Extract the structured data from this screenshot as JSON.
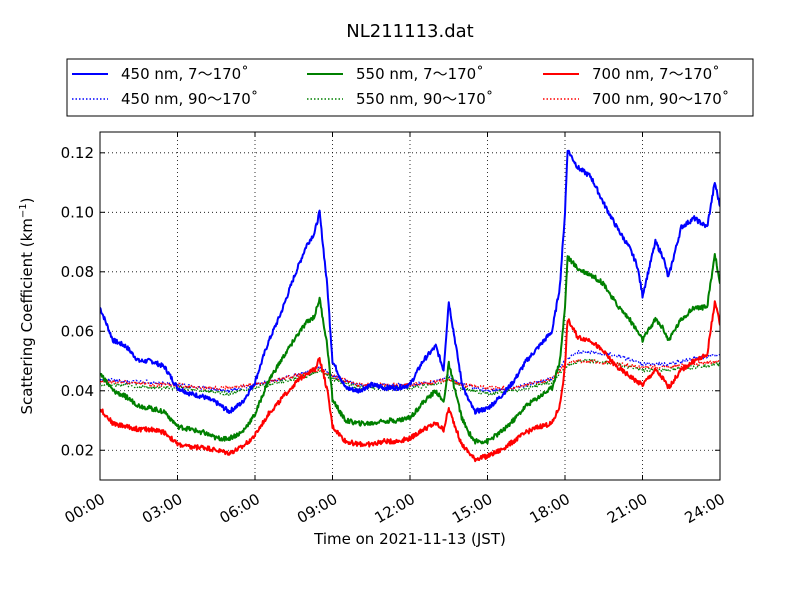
{
  "chart_data": {
    "type": "line",
    "title": "NL211113.dat",
    "xlabel": "Time on 2021-11-13 (JST)",
    "ylabel": "Scattering Coefficient (km",
    "ylabel_sup": "−1",
    "ylabel_tail": ")",
    "xlim": [
      0,
      24
    ],
    "ylim": [
      0.01,
      0.127
    ],
    "x_ticks": [
      0,
      3,
      6,
      9,
      12,
      15,
      18,
      21,
      24
    ],
    "x_tick_labels": [
      "00:00",
      "03:00",
      "06:00",
      "09:00",
      "12:00",
      "15:00",
      "18:00",
      "21:00",
      "24:00"
    ],
    "y_ticks": [
      0.02,
      0.04,
      0.06,
      0.08,
      0.1,
      0.12
    ],
    "y_tick_labels": [
      "0.02",
      "0.04",
      "0.06",
      "0.08",
      "0.10",
      "0.12"
    ],
    "grid": true,
    "legend_placement": "top, outside plot, 3 columns",
    "series": [
      {
        "name": "450 nm, 7～170˚",
        "color": "#0000ff",
        "style": "solid",
        "x": [
          0,
          0.5,
          1,
          1.5,
          2,
          2.5,
          3,
          3.5,
          4,
          4.5,
          5,
          5.5,
          6,
          6.5,
          7,
          7.5,
          8,
          8.3,
          8.5,
          8.8,
          9,
          9.5,
          10,
          10.5,
          11,
          11.5,
          12,
          12.5,
          13,
          13.3,
          13.5,
          14,
          14.2,
          14.5,
          15,
          15.5,
          16,
          16.5,
          17,
          17.5,
          17.8,
          18,
          18.1,
          18.5,
          19,
          19.5,
          20,
          20.5,
          20.8,
          21,
          21.5,
          21.8,
          22,
          22.5,
          23,
          23.5,
          23.8,
          24
        ],
        "y": [
          0.068,
          0.057,
          0.055,
          0.05,
          0.05,
          0.048,
          0.041,
          0.039,
          0.038,
          0.036,
          0.033,
          0.036,
          0.043,
          0.056,
          0.066,
          0.078,
          0.089,
          0.093,
          0.1,
          0.075,
          0.05,
          0.041,
          0.04,
          0.042,
          0.041,
          0.041,
          0.042,
          0.05,
          0.055,
          0.047,
          0.07,
          0.043,
          0.038,
          0.033,
          0.034,
          0.038,
          0.043,
          0.05,
          0.055,
          0.06,
          0.075,
          0.1,
          0.121,
          0.115,
          0.112,
          0.103,
          0.095,
          0.088,
          0.082,
          0.072,
          0.09,
          0.085,
          0.078,
          0.095,
          0.098,
          0.095,
          0.11,
          0.102
        ]
      },
      {
        "name": "550 nm, 7～170˚",
        "color": "#008000",
        "style": "solid",
        "x": [
          0,
          0.5,
          1,
          1.5,
          2,
          2.5,
          3,
          3.5,
          4,
          4.5,
          5,
          5.5,
          6,
          6.5,
          7,
          7.5,
          8,
          8.3,
          8.5,
          8.8,
          9,
          9.5,
          10,
          10.5,
          11,
          11.5,
          12,
          12.5,
          13,
          13.3,
          13.5,
          14,
          14.2,
          14.5,
          15,
          15.5,
          16,
          16.5,
          17,
          17.5,
          17.8,
          18,
          18.1,
          18.5,
          19,
          19.5,
          20,
          20.5,
          20.8,
          21,
          21.5,
          21.8,
          22,
          22.5,
          23,
          23.5,
          23.8,
          24
        ],
        "y": [
          0.046,
          0.04,
          0.038,
          0.035,
          0.034,
          0.033,
          0.028,
          0.027,
          0.026,
          0.024,
          0.024,
          0.026,
          0.032,
          0.043,
          0.05,
          0.057,
          0.063,
          0.065,
          0.071,
          0.055,
          0.037,
          0.03,
          0.029,
          0.029,
          0.03,
          0.03,
          0.031,
          0.036,
          0.04,
          0.036,
          0.049,
          0.031,
          0.027,
          0.023,
          0.023,
          0.026,
          0.03,
          0.035,
          0.038,
          0.041,
          0.05,
          0.068,
          0.085,
          0.081,
          0.079,
          0.076,
          0.069,
          0.064,
          0.06,
          0.057,
          0.064,
          0.061,
          0.057,
          0.064,
          0.068,
          0.068,
          0.086,
          0.076
        ]
      },
      {
        "name": "700 nm, 7～170˚",
        "color": "#ff0000",
        "style": "solid",
        "x": [
          0,
          0.5,
          1,
          1.5,
          2,
          2.5,
          3,
          3.5,
          4,
          4.5,
          5,
          5.5,
          6,
          6.5,
          7,
          7.5,
          8,
          8.3,
          8.5,
          8.8,
          9,
          9.5,
          10,
          10.5,
          11,
          11.5,
          12,
          12.5,
          13,
          13.3,
          13.5,
          14,
          14.2,
          14.5,
          15,
          15.5,
          16,
          16.5,
          17,
          17.5,
          17.8,
          18,
          18.1,
          18.5,
          19,
          19.5,
          20,
          20.5,
          20.8,
          21,
          21.5,
          21.8,
          22,
          22.5,
          23,
          23.5,
          23.8,
          24
        ],
        "y": [
          0.034,
          0.029,
          0.028,
          0.027,
          0.027,
          0.026,
          0.022,
          0.021,
          0.021,
          0.02,
          0.019,
          0.021,
          0.025,
          0.032,
          0.037,
          0.042,
          0.046,
          0.047,
          0.051,
          0.04,
          0.028,
          0.023,
          0.022,
          0.022,
          0.023,
          0.023,
          0.024,
          0.027,
          0.029,
          0.027,
          0.034,
          0.022,
          0.02,
          0.017,
          0.018,
          0.02,
          0.023,
          0.026,
          0.028,
          0.029,
          0.035,
          0.048,
          0.064,
          0.058,
          0.057,
          0.053,
          0.048,
          0.045,
          0.043,
          0.042,
          0.047,
          0.044,
          0.041,
          0.047,
          0.05,
          0.052,
          0.07,
          0.062
        ]
      },
      {
        "name": "450 nm, 90～170˚",
        "color": "#0000ff",
        "style": "dotted",
        "x": [
          0,
          1,
          2,
          3,
          4,
          5,
          6,
          7,
          8,
          8.5,
          9,
          10,
          11,
          12,
          13,
          13.5,
          14,
          15,
          16,
          17,
          17.5,
          18,
          18.5,
          19,
          20,
          21,
          22,
          23,
          24
        ],
        "y": [
          0.044,
          0.043,
          0.043,
          0.042,
          0.041,
          0.04,
          0.042,
          0.044,
          0.046,
          0.048,
          0.045,
          0.042,
          0.042,
          0.042,
          0.043,
          0.045,
          0.042,
          0.04,
          0.041,
          0.043,
          0.044,
          0.05,
          0.053,
          0.053,
          0.052,
          0.049,
          0.049,
          0.051,
          0.052
        ]
      },
      {
        "name": "550 nm, 90～170˚",
        "color": "#008000",
        "style": "dotted",
        "x": [
          0,
          1,
          2,
          3,
          4,
          5,
          6,
          7,
          8,
          8.5,
          9,
          10,
          11,
          12,
          13,
          13.5,
          14,
          15,
          16,
          17,
          17.5,
          18,
          18.5,
          19,
          20,
          21,
          22,
          23,
          24
        ],
        "y": [
          0.042,
          0.042,
          0.041,
          0.041,
          0.04,
          0.039,
          0.041,
          0.043,
          0.045,
          0.047,
          0.044,
          0.041,
          0.041,
          0.041,
          0.042,
          0.044,
          0.041,
          0.039,
          0.04,
          0.042,
          0.043,
          0.048,
          0.05,
          0.05,
          0.049,
          0.047,
          0.047,
          0.048,
          0.049
        ]
      },
      {
        "name": "700 nm, 90～170˚",
        "color": "#ff0000",
        "style": "dotted",
        "x": [
          0,
          1,
          2,
          3,
          4,
          5,
          6,
          7,
          8,
          8.5,
          9,
          10,
          11,
          12,
          13,
          13.5,
          14,
          15,
          16,
          17,
          17.5,
          18,
          18.5,
          19,
          20,
          21,
          22,
          23,
          24
        ],
        "y": [
          0.043,
          0.043,
          0.042,
          0.042,
          0.041,
          0.041,
          0.042,
          0.044,
          0.046,
          0.047,
          0.045,
          0.042,
          0.042,
          0.042,
          0.043,
          0.044,
          0.042,
          0.041,
          0.041,
          0.043,
          0.044,
          0.049,
          0.05,
          0.05,
          0.049,
          0.048,
          0.048,
          0.049,
          0.05
        ]
      }
    ]
  }
}
